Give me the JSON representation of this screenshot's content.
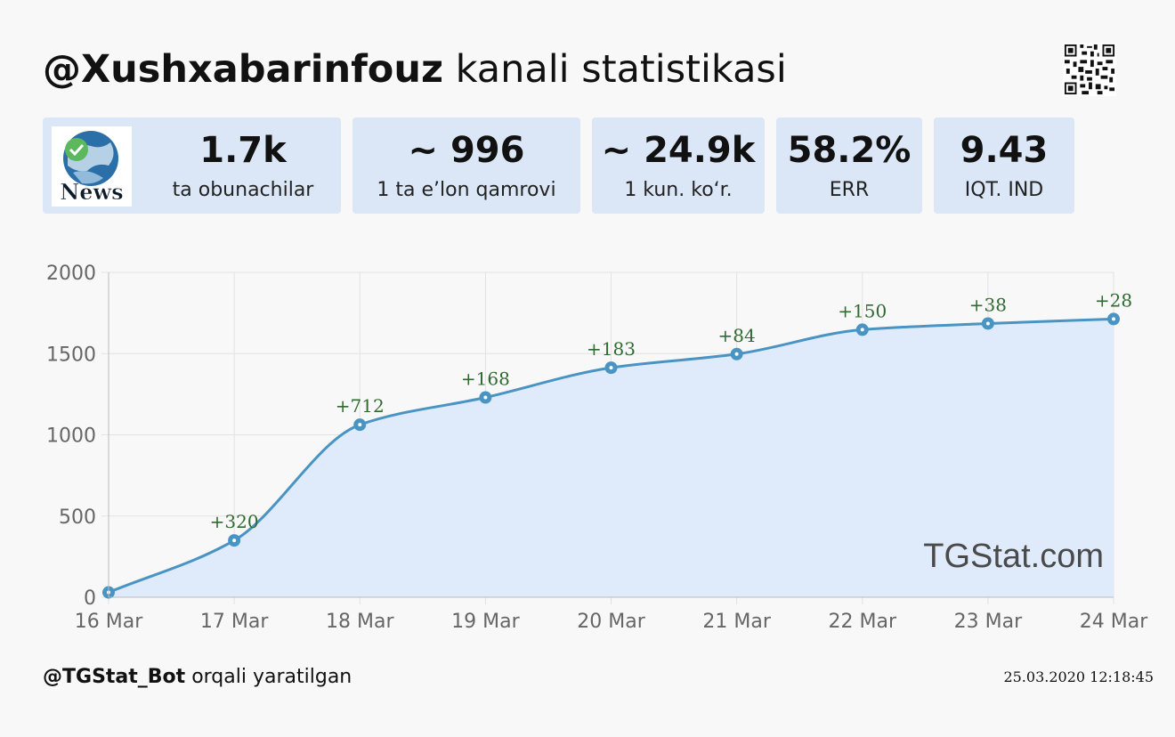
{
  "header": {
    "channel": "@Xushxabarinfouz",
    "title_rest": "kanali statistikasi"
  },
  "stats": [
    {
      "value": "1.7k",
      "label": "ta obunachilar"
    },
    {
      "value": "~ 996",
      "label": "1 ta e’lon qamrovi"
    },
    {
      "value": "~ 24.9k",
      "label": "1 kun. ko‘r."
    },
    {
      "value": "58.2%",
      "label": "ERR"
    },
    {
      "value": "9.43",
      "label": "IQT. IND"
    }
  ],
  "avatar": {
    "text": "News"
  },
  "watermark": "TGStat.com",
  "footer": {
    "bot": "@TGStat_Bot",
    "bot_rest": "orqali yaratilgan",
    "timestamp": "25.03.2020 12:18:45"
  },
  "colors": {
    "line": "#4a94c4",
    "fill": "#dfebfb",
    "annotation": "#2f6a31",
    "card": "#dbe7f6"
  },
  "chart_data": {
    "type": "area",
    "categories": [
      "16 Mar",
      "17 Mar",
      "18 Mar",
      "19 Mar",
      "20 Mar",
      "21 Mar",
      "22 Mar",
      "23 Mar",
      "24 Mar"
    ],
    "values": [
      30,
      350,
      1062,
      1230,
      1413,
      1497,
      1647,
      1685,
      1713
    ],
    "annotations": [
      "",
      "+320",
      "+712",
      "+168",
      "+183",
      "+84",
      "+150",
      "+38",
      "+28"
    ],
    "yticks": [
      0,
      500,
      1000,
      1500,
      2000
    ],
    "ylim": [
      0,
      2000
    ],
    "grid": true,
    "title": "",
    "xlabel": "",
    "ylabel": ""
  }
}
